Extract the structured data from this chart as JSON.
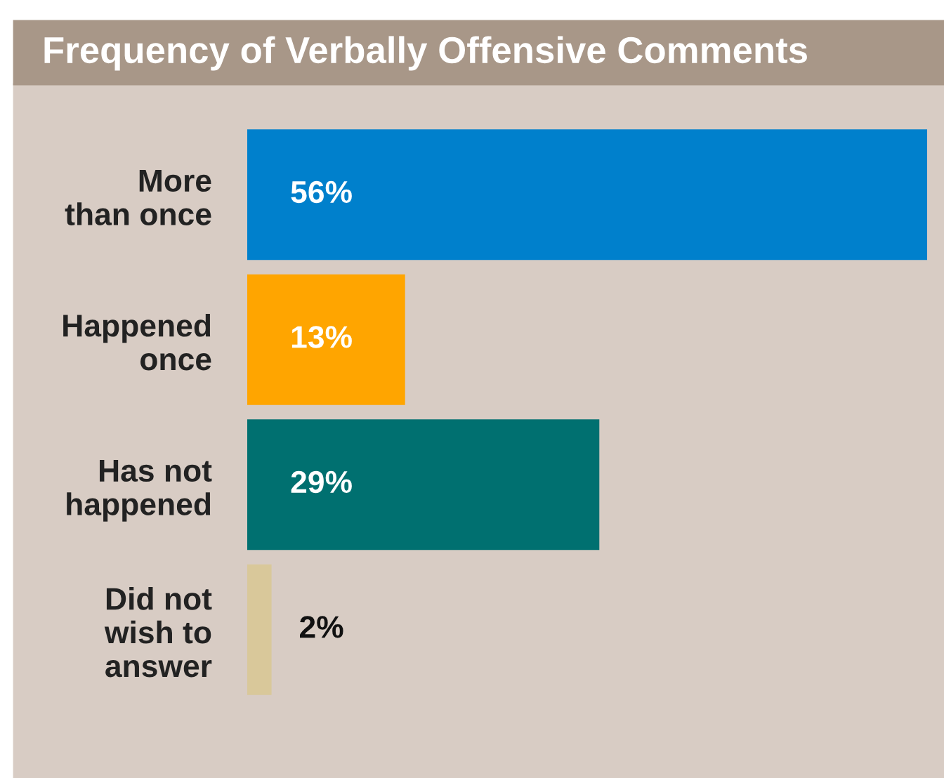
{
  "chart_data": {
    "type": "bar",
    "orientation": "horizontal",
    "title": "Frequency of Verbally Offensive Comments",
    "categories": [
      "More\nthan once",
      "Happened\nonce",
      "Has not\nhappened",
      "Did not\nwish to\nanswer"
    ],
    "values": [
      56,
      13,
      29,
      2
    ],
    "colors": [
      "#0080cc",
      "#ffa500",
      "#007070",
      "#d9c89a"
    ],
    "value_labels": [
      "56%",
      "13%",
      "29%",
      "2%"
    ]
  }
}
